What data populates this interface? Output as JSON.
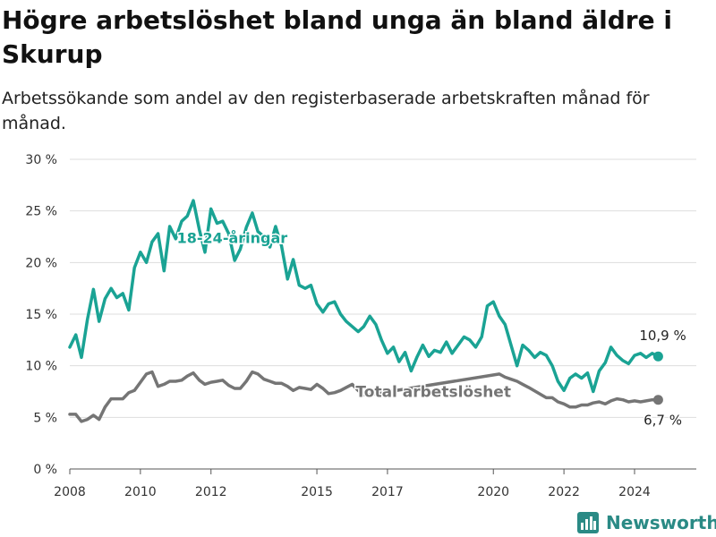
{
  "title": "Högre arbetslöshet bland unga än bland äldre i Skurup",
  "subtitle": "Arbetssökande som andel av den registerbaserade arbetskraften månad för månad.",
  "brand": {
    "name": "Newsworthy",
    "color": "#2a8a85"
  },
  "chart_data": {
    "type": "line",
    "title": "Högre arbetslöshet bland unga än bland äldre i Skurup",
    "subtitle": "Arbetssökande som andel av den registerbaserade arbetskraften månad för månad.",
    "xlabel": "",
    "ylabel": "",
    "xlim": [
      2008.0,
      2025.75
    ],
    "ylim": [
      0,
      30
    ],
    "grid": true,
    "x_ticks": [
      2008,
      2010,
      2012,
      2015,
      2017,
      2020,
      2022,
      2024
    ],
    "x_tick_labels": [
      "2008",
      "2010",
      "2012",
      "2015",
      "2017",
      "2020",
      "2022",
      "2024"
    ],
    "y_ticks": [
      0,
      5,
      10,
      15,
      20,
      25,
      30
    ],
    "y_tick_labels": [
      "0 %",
      "5 %",
      "10 %",
      "15 %",
      "20 %",
      "25 %",
      "30 %"
    ],
    "series": [
      {
        "name": "18-24-åringar",
        "color": "#1aa394",
        "end_label": "10,9 %",
        "points": [
          [
            2008.0,
            11.8
          ],
          [
            2008.17,
            13.0
          ],
          [
            2008.33,
            10.8
          ],
          [
            2008.5,
            14.5
          ],
          [
            2008.67,
            17.4
          ],
          [
            2008.83,
            14.3
          ],
          [
            2009.0,
            16.5
          ],
          [
            2009.17,
            17.5
          ],
          [
            2009.33,
            16.6
          ],
          [
            2009.5,
            17.0
          ],
          [
            2009.67,
            15.4
          ],
          [
            2009.83,
            19.5
          ],
          [
            2010.0,
            21.0
          ],
          [
            2010.17,
            20.0
          ],
          [
            2010.33,
            22.0
          ],
          [
            2010.5,
            22.8
          ],
          [
            2010.67,
            19.2
          ],
          [
            2010.83,
            23.5
          ],
          [
            2011.0,
            22.3
          ],
          [
            2011.17,
            24.0
          ],
          [
            2011.33,
            24.5
          ],
          [
            2011.5,
            26.0
          ],
          [
            2011.67,
            23.2
          ],
          [
            2011.83,
            21.0
          ],
          [
            2012.0,
            25.2
          ],
          [
            2012.17,
            23.8
          ],
          [
            2012.33,
            24.0
          ],
          [
            2012.5,
            22.8
          ],
          [
            2012.67,
            20.2
          ],
          [
            2012.83,
            21.3
          ],
          [
            2013.0,
            23.4
          ],
          [
            2013.17,
            24.8
          ],
          [
            2013.33,
            23.0
          ],
          [
            2013.5,
            22.5
          ],
          [
            2013.67,
            21.5
          ],
          [
            2013.83,
            23.5
          ],
          [
            2014.0,
            21.6
          ],
          [
            2014.17,
            18.4
          ],
          [
            2014.33,
            20.3
          ],
          [
            2014.5,
            17.8
          ],
          [
            2014.67,
            17.5
          ],
          [
            2014.83,
            17.8
          ],
          [
            2015.0,
            16.0
          ],
          [
            2015.17,
            15.2
          ],
          [
            2015.33,
            16.0
          ],
          [
            2015.5,
            16.2
          ],
          [
            2015.67,
            15.0
          ],
          [
            2015.83,
            14.3
          ],
          [
            2016.0,
            13.8
          ],
          [
            2016.17,
            13.3
          ],
          [
            2016.33,
            13.8
          ],
          [
            2016.5,
            14.8
          ],
          [
            2016.67,
            14.0
          ],
          [
            2016.83,
            12.5
          ],
          [
            2017.0,
            11.2
          ],
          [
            2017.17,
            11.8
          ],
          [
            2017.33,
            10.4
          ],
          [
            2017.5,
            11.3
          ],
          [
            2017.67,
            9.5
          ],
          [
            2017.83,
            10.8
          ],
          [
            2018.0,
            12.0
          ],
          [
            2018.17,
            10.9
          ],
          [
            2018.33,
            11.5
          ],
          [
            2018.5,
            11.3
          ],
          [
            2018.67,
            12.3
          ],
          [
            2018.83,
            11.2
          ],
          [
            2019.0,
            12.0
          ],
          [
            2019.17,
            12.8
          ],
          [
            2019.33,
            12.5
          ],
          [
            2019.5,
            11.8
          ],
          [
            2019.67,
            12.8
          ],
          [
            2019.83,
            15.8
          ],
          [
            2020.0,
            16.2
          ],
          [
            2020.17,
            14.8
          ],
          [
            2020.33,
            14.0
          ],
          [
            2020.5,
            12.0
          ],
          [
            2020.67,
            10.0
          ],
          [
            2020.83,
            12.0
          ],
          [
            2021.0,
            11.5
          ],
          [
            2021.17,
            10.8
          ],
          [
            2021.33,
            11.3
          ],
          [
            2021.5,
            11.0
          ],
          [
            2021.67,
            10.0
          ],
          [
            2021.83,
            8.5
          ],
          [
            2022.0,
            7.6
          ],
          [
            2022.17,
            8.8
          ],
          [
            2022.33,
            9.2
          ],
          [
            2022.5,
            8.8
          ],
          [
            2022.67,
            9.3
          ],
          [
            2022.83,
            7.5
          ],
          [
            2023.0,
            9.5
          ],
          [
            2023.17,
            10.3
          ],
          [
            2023.33,
            11.8
          ],
          [
            2023.5,
            11.0
          ],
          [
            2023.67,
            10.5
          ],
          [
            2023.83,
            10.2
          ],
          [
            2024.0,
            11.0
          ],
          [
            2024.17,
            11.2
          ],
          [
            2024.33,
            10.8
          ],
          [
            2024.5,
            11.2
          ],
          [
            2024.67,
            10.9
          ]
        ]
      },
      {
        "name": "Total arbetslöshet",
        "color": "#757575",
        "end_label": "6,7 %",
        "points": [
          [
            2008.0,
            5.3
          ],
          [
            2008.17,
            5.3
          ],
          [
            2008.33,
            4.6
          ],
          [
            2008.5,
            4.8
          ],
          [
            2008.67,
            5.2
          ],
          [
            2008.83,
            4.8
          ],
          [
            2009.0,
            6.0
          ],
          [
            2009.17,
            6.8
          ],
          [
            2009.33,
            6.8
          ],
          [
            2009.5,
            6.8
          ],
          [
            2009.67,
            7.4
          ],
          [
            2009.83,
            7.6
          ],
          [
            2010.0,
            8.4
          ],
          [
            2010.17,
            9.2
          ],
          [
            2010.33,
            9.4
          ],
          [
            2010.5,
            8.0
          ],
          [
            2010.67,
            8.2
          ],
          [
            2010.83,
            8.5
          ],
          [
            2011.0,
            8.5
          ],
          [
            2011.17,
            8.6
          ],
          [
            2011.33,
            9.0
          ],
          [
            2011.5,
            9.3
          ],
          [
            2011.67,
            8.6
          ],
          [
            2011.83,
            8.2
          ],
          [
            2012.0,
            8.4
          ],
          [
            2012.17,
            8.5
          ],
          [
            2012.33,
            8.6
          ],
          [
            2012.5,
            8.1
          ],
          [
            2012.67,
            7.8
          ],
          [
            2012.83,
            7.8
          ],
          [
            2013.0,
            8.5
          ],
          [
            2013.17,
            9.4
          ],
          [
            2013.33,
            9.2
          ],
          [
            2013.5,
            8.7
          ],
          [
            2013.67,
            8.5
          ],
          [
            2013.83,
            8.3
          ],
          [
            2014.0,
            8.3
          ],
          [
            2014.17,
            8.0
          ],
          [
            2014.33,
            7.6
          ],
          [
            2014.5,
            7.9
          ],
          [
            2014.67,
            7.8
          ],
          [
            2014.83,
            7.7
          ],
          [
            2015.0,
            8.2
          ],
          [
            2015.17,
            7.8
          ],
          [
            2015.33,
            7.3
          ],
          [
            2015.5,
            7.4
          ],
          [
            2015.67,
            7.6
          ],
          [
            2015.83,
            7.9
          ],
          [
            2016.0,
            8.2
          ],
          [
            2016.17,
            7.6
          ],
          [
            2016.33,
            7.2
          ],
          [
            2016.5,
            7.2
          ],
          [
            2020.17,
            9.2
          ],
          [
            2020.33,
            8.9
          ],
          [
            2020.5,
            8.7
          ],
          [
            2020.67,
            8.5
          ],
          [
            2020.83,
            8.2
          ],
          [
            2021.0,
            7.9
          ],
          [
            2021.5,
            6.9
          ],
          [
            2021.67,
            6.9
          ],
          [
            2021.83,
            6.5
          ],
          [
            2022.0,
            6.3
          ],
          [
            2022.17,
            6.0
          ],
          [
            2022.33,
            6.0
          ],
          [
            2022.5,
            6.2
          ],
          [
            2022.67,
            6.2
          ],
          [
            2022.83,
            6.4
          ],
          [
            2023.0,
            6.5
          ],
          [
            2023.17,
            6.3
          ],
          [
            2023.33,
            6.6
          ],
          [
            2023.5,
            6.8
          ],
          [
            2023.67,
            6.7
          ],
          [
            2023.83,
            6.5
          ],
          [
            2024.0,
            6.6
          ],
          [
            2024.17,
            6.5
          ],
          [
            2024.33,
            6.6
          ],
          [
            2024.5,
            6.7
          ],
          [
            2024.67,
            6.7
          ]
        ]
      }
    ]
  }
}
